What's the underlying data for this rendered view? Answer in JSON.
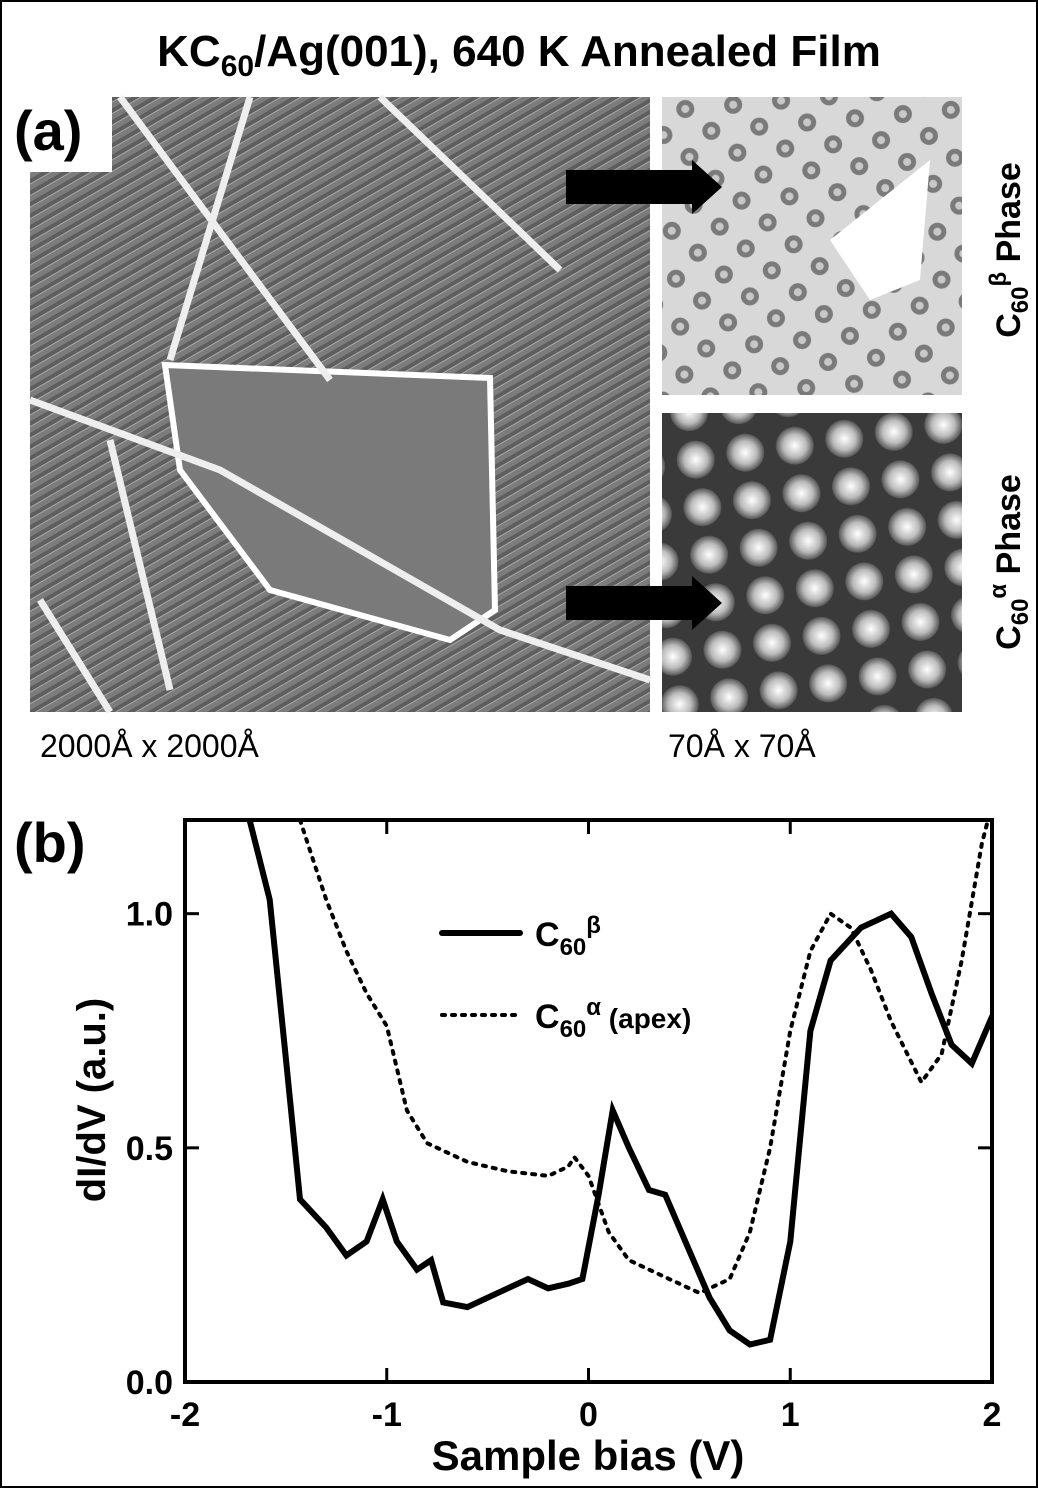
{
  "title_parts": [
    "KC",
    "60",
    "/Ag(001), 640 K Annealed Film"
  ],
  "panels": {
    "a": {
      "label": "(a)",
      "large_caption": "2000Å x 2000Å",
      "small_caption": "70Å x 70Å",
      "top_phase": [
        "C",
        "60",
        "β",
        " Phase"
      ],
      "bottom_phase": [
        "C",
        "60",
        "α",
        " Phase"
      ]
    },
    "b": {
      "label": "(b)"
    }
  },
  "chart_data": {
    "type": "line",
    "x_label": "Sample bias (V)",
    "y_label": "dI/dV (a.u.)",
    "xlim": [
      -2,
      2
    ],
    "xticks": [
      -2,
      -1,
      0,
      1,
      2
    ],
    "ylim": [
      0,
      1.2
    ],
    "yticks": [
      {
        "value": 0,
        "label": "0.0"
      },
      {
        "value": 0.5,
        "label": "0.5"
      },
      {
        "value": 1,
        "label": "1.0"
      }
    ],
    "series": [
      {
        "name": [
          "C",
          "60",
          "β"
        ],
        "color": "#000000",
        "style": "solid",
        "x": [
          -1.68,
          -1.58,
          -1.5,
          -1.43,
          -1.3,
          -1.2,
          -1.1,
          -1.02,
          -0.95,
          -0.85,
          -0.78,
          -0.72,
          -0.6,
          -0.5,
          -0.4,
          -0.3,
          -0.2,
          -0.1,
          -0.03,
          0.05,
          0.12,
          0.2,
          0.3,
          0.38,
          0.5,
          0.6,
          0.7,
          0.8,
          0.9,
          1.0,
          1.1,
          1.2,
          1.35,
          1.5,
          1.6,
          1.7,
          1.8,
          1.9,
          2.0
        ],
        "values": [
          1.2,
          1.03,
          0.69,
          0.39,
          0.33,
          0.27,
          0.3,
          0.39,
          0.3,
          0.24,
          0.26,
          0.17,
          0.16,
          0.18,
          0.2,
          0.22,
          0.2,
          0.21,
          0.22,
          0.4,
          0.58,
          0.5,
          0.41,
          0.4,
          0.28,
          0.18,
          0.11,
          0.08,
          0.09,
          0.3,
          0.75,
          0.9,
          0.97,
          1.0,
          0.95,
          0.83,
          0.72,
          0.68,
          0.78
        ]
      },
      {
        "name": [
          "C",
          "60",
          "α",
          " (apex)"
        ],
        "color": "#000000",
        "style": "dotted",
        "x": [
          -1.43,
          -1.3,
          -1.2,
          -1.1,
          -1.0,
          -0.9,
          -0.8,
          -0.6,
          -0.4,
          -0.2,
          -0.1,
          -0.07,
          0.0,
          0.1,
          0.2,
          0.4,
          0.55,
          0.7,
          0.8,
          0.9,
          1.0,
          1.1,
          1.2,
          1.3,
          1.4,
          1.5,
          1.65,
          1.75,
          1.85,
          1.95,
          1.98
        ],
        "values": [
          1.2,
          1.03,
          0.92,
          0.83,
          0.76,
          0.58,
          0.51,
          0.47,
          0.45,
          0.44,
          0.46,
          0.48,
          0.44,
          0.32,
          0.26,
          0.22,
          0.19,
          0.22,
          0.32,
          0.5,
          0.75,
          0.92,
          1.0,
          0.97,
          0.88,
          0.77,
          0.64,
          0.7,
          0.9,
          1.15,
          1.2
        ]
      }
    ]
  }
}
